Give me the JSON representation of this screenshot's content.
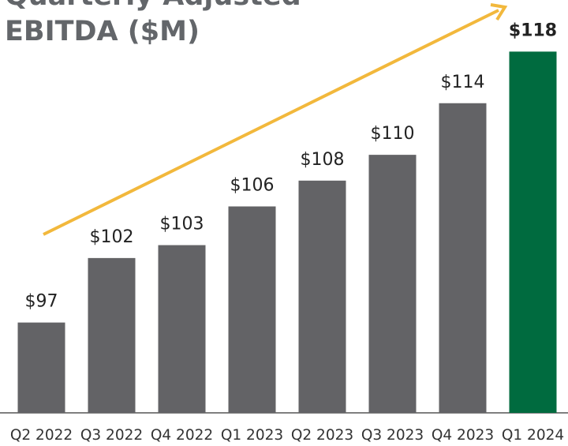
{
  "chart_data": {
    "type": "bar",
    "title": "Quarterly Adjusted EBITDA ($M)",
    "categories": [
      "Q2 2022",
      "Q3 2022",
      "Q4 2022",
      "Q1 2023",
      "Q2 2023",
      "Q3 2023",
      "Q4 2023",
      "Q1 2024"
    ],
    "values": [
      97,
      102,
      103,
      106,
      108,
      110,
      114,
      118
    ],
    "value_labels": [
      "$97",
      "$102",
      "$103",
      "$106",
      "$108",
      "$110",
      "$114",
      "$118"
    ],
    "color": "#636366",
    "colors": [
      "#636366",
      "#636366",
      "#636366",
      "#636366",
      "#636366",
      "#636366",
      "#636366",
      "#006b3f"
    ],
    "ylim": [
      90,
      122
    ]
  }
}
